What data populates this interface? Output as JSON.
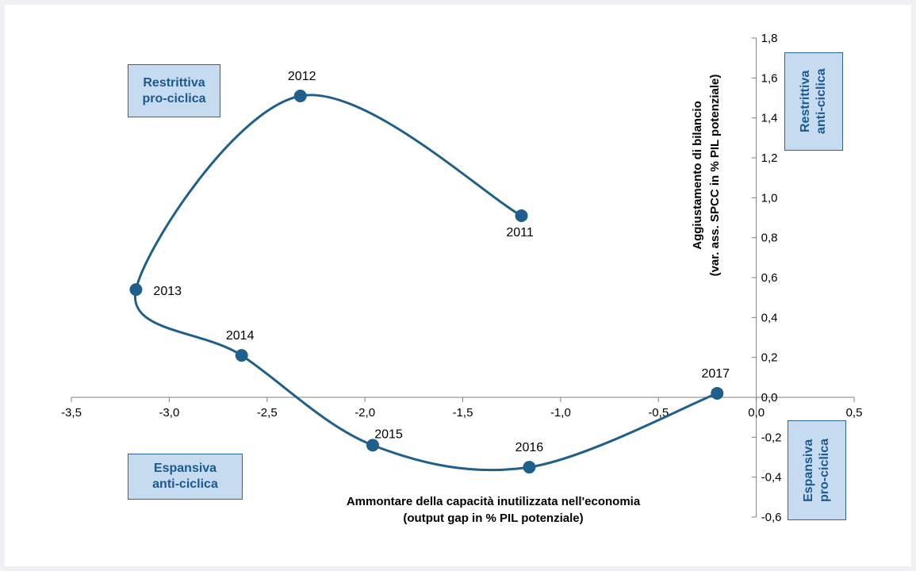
{
  "chart_data": {
    "type": "line",
    "xlabel": [
      "Ammontare della capacità inutilizzata nell'economia",
      "(output gap in % PIL potenziale)"
    ],
    "ylabel": [
      "Aggiustamento di bilancio",
      "(var. ass. SPCC in % PIL potenziale)"
    ],
    "xlim": [
      -3.5,
      0.5
    ],
    "ylim": [
      -0.6,
      1.8
    ],
    "x_ticks": [
      "-3,5",
      "-3,0",
      "-2,5",
      "-2,0",
      "-1,5",
      "-1,0",
      "-0,5",
      "0,0",
      "0,5"
    ],
    "y_ticks": [
      "1,8",
      "1,6",
      "1,4",
      "1,2",
      "1,0",
      "0,8",
      "0,6",
      "0,4",
      "0,2",
      "0,0",
      "-0,2",
      "-0,4",
      "-0,6"
    ],
    "series": [
      {
        "points": [
          {
            "label": "2011",
            "x": -1.2,
            "y": 0.91
          },
          {
            "label": "2012",
            "x": -2.33,
            "y": 1.51
          },
          {
            "label": "2013",
            "x": -3.17,
            "y": 0.54
          },
          {
            "label": "2014",
            "x": -2.63,
            "y": 0.21
          },
          {
            "label": "2015",
            "x": -1.96,
            "y": -0.24
          },
          {
            "label": "2016",
            "x": -1.16,
            "y": -0.35
          },
          {
            "label": "2017",
            "x": -0.2,
            "y": 0.02
          }
        ]
      }
    ],
    "color": "#1f5f8b",
    "grid": false
  },
  "quadrants": {
    "top_left": [
      "Restrittiva",
      "pro-ciclica"
    ],
    "top_right": [
      "Restrittiva",
      "anti-ciclica"
    ],
    "bottom_left": [
      "Espansiva",
      "anti-ciclica"
    ],
    "bottom_right": [
      "Espansiva",
      "pro-ciclica"
    ]
  }
}
